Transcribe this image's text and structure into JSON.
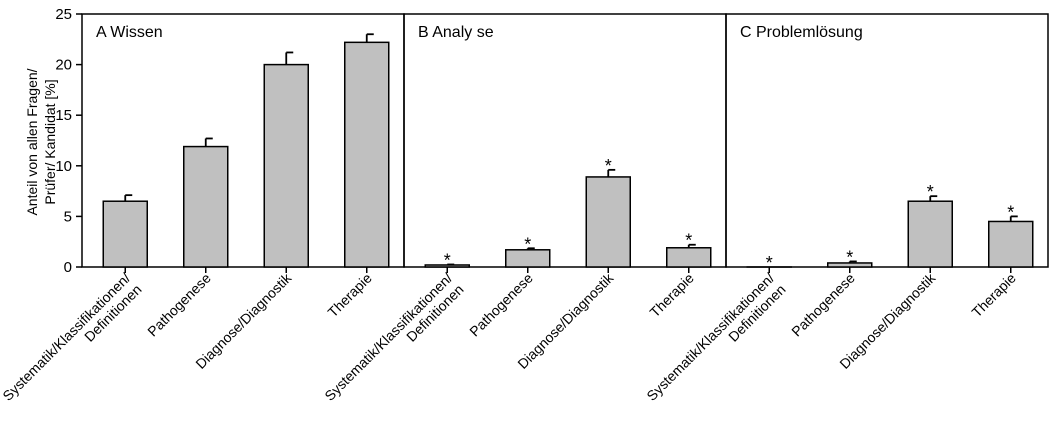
{
  "chart_data": {
    "type": "bar",
    "ylabel": [
      "Anteil von allen Fragen/",
      "Prüfer/ Kandidat [%]"
    ],
    "ylim": [
      0,
      25
    ],
    "yticks": [
      0,
      5,
      10,
      15,
      20,
      25
    ],
    "categories": [
      [
        "Systematik/Klassifikationen/",
        "Definitionen"
      ],
      [
        "Pathogenese"
      ],
      [
        "Diagnose/Diagnostik"
      ],
      [
        "Therapie"
      ]
    ],
    "panels": [
      {
        "title": "A Wissen",
        "values": [
          6.5,
          11.9,
          20.0,
          22.2
        ],
        "errors": [
          0.6,
          0.8,
          1.2,
          0.8
        ],
        "significant": [
          false,
          false,
          false,
          false
        ]
      },
      {
        "title": "B Analy se",
        "values": [
          0.2,
          1.7,
          8.9,
          1.9
        ],
        "errors": [
          0.05,
          0.15,
          0.7,
          0.3
        ],
        "significant": [
          true,
          true,
          true,
          true
        ]
      },
      {
        "title": "C Problemlösung",
        "values": [
          0.0,
          0.4,
          6.5,
          4.5
        ],
        "errors": [
          0.0,
          0.15,
          0.5,
          0.5
        ],
        "significant": [
          true,
          true,
          true,
          true
        ]
      }
    ],
    "significance_marker": "*",
    "bar_color": "#c0c0c0",
    "grid": false
  }
}
